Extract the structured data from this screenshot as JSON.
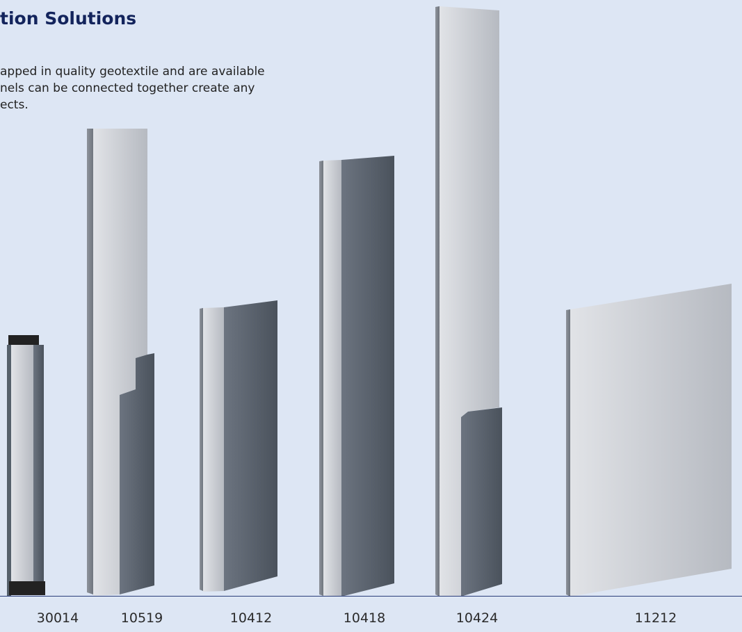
{
  "header": {
    "title": "tion Solutions",
    "description_lines": [
      "apped in quality geotextile and are available",
      "nels can be connected together create any",
      "ects."
    ]
  },
  "products": [
    {
      "code": "30014"
    },
    {
      "code": "10519"
    },
    {
      "code": "10412"
    },
    {
      "code": "10418"
    },
    {
      "code": "10424"
    },
    {
      "code": "11212"
    }
  ],
  "colors": {
    "background": "#dde6f4",
    "title": "#13245c",
    "baseline": "#2b3d7a",
    "panel_light": "#c9ccd2",
    "panel_dark": "#5b6470"
  }
}
